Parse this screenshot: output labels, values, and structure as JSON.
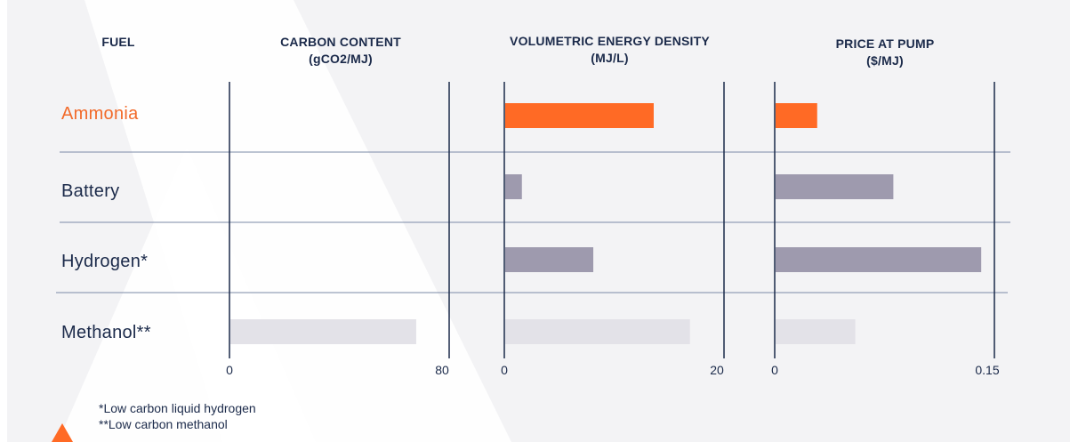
{
  "chart_data": {
    "type": "bar",
    "orientation": "horizontal",
    "categories": [
      "Ammonia",
      "Battery",
      "Hydrogen*",
      "Methanol**"
    ],
    "category_header": "FUEL",
    "highlight_category": "Ammonia",
    "colors": {
      "highlight": "#ff6a25",
      "default": "#9e9aae",
      "baseline": "#e3e2e8",
      "axis": "#1b2a4a",
      "separator": "#7b8aa6"
    },
    "panels": [
      {
        "id": "carbon",
        "title": [
          "CARBON CONTENT",
          "(gCO2/MJ)"
        ],
        "xlim": [
          0,
          80
        ],
        "tick_labels": [
          "0",
          "80"
        ],
        "values": [
          0,
          0,
          0,
          68
        ]
      },
      {
        "id": "energy",
        "title": [
          "VOLUMETRIC ENERGY DENSITY",
          "(MJ/L)"
        ],
        "xlim": [
          0,
          20
        ],
        "tick_labels": [
          "0",
          "20"
        ],
        "values": [
          13.6,
          1.6,
          8.1,
          16.9
        ]
      },
      {
        "id": "price",
        "title": [
          "PRICE AT PUMP",
          "($/MJ)"
        ],
        "xlim": [
          0,
          0.15
        ],
        "tick_labels": [
          "0",
          "0.15"
        ],
        "values": [
          0.029,
          0.081,
          0.141,
          0.055
        ]
      }
    ]
  },
  "footnotes": [
    "*Low carbon liquid hydrogen",
    "**Low carbon methanol"
  ]
}
